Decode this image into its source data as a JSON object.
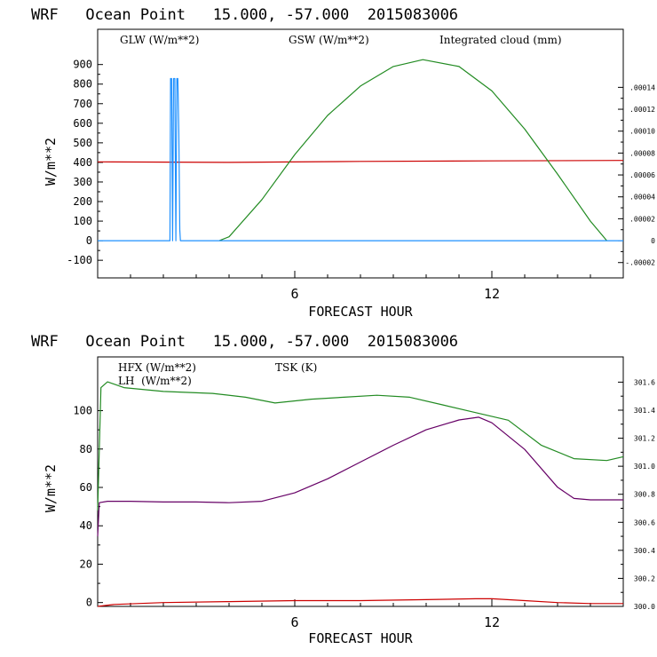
{
  "chart_data": [
    {
      "type": "line",
      "title": "WRF   Ocean Point   15.000, -57.000  2015083006",
      "xlabel": "FORECAST HOUR",
      "ylabel": "W/m**2",
      "xlim": [
        0,
        16
      ],
      "ylim": [
        -190,
        1080
      ],
      "x_ticks": [
        6,
        12
      ],
      "x_tick_labels": [
        "6",
        "12"
      ],
      "y_ticks": [
        -100,
        0,
        100,
        200,
        300,
        400,
        500,
        600,
        700,
        800,
        900
      ],
      "y_tick_labels": [
        "-100",
        "0",
        "100",
        "200",
        "300",
        "400",
        "500",
        "600",
        "700",
        "800",
        "900"
      ],
      "right_axis": {
        "ylim": [
          -3.4e-05,
          0.000193
        ],
        "ticks": [
          -2e-05,
          0,
          2e-05,
          4e-05,
          6e-05,
          8e-05,
          0.0001,
          0.00012,
          0.00014
        ],
        "tick_labels": [
          "-.00002",
          "0",
          ".00002",
          ".00004",
          ".00006",
          ".00008",
          ".00010",
          ".00012",
          ".00014"
        ]
      },
      "legend": [
        "GLW (W/m**2)",
        "GSW (W/m**2)",
        "Integrated cloud (mm)"
      ],
      "series": [
        {
          "name": "GLW (W/m**2)",
          "color": "#cc0000",
          "x": [
            0,
            4,
            8,
            12,
            16
          ],
          "y": [
            403,
            400,
            405,
            408,
            410
          ]
        },
        {
          "name": "GSW (W/m**2)",
          "color": "#228b22",
          "x": [
            3.7,
            4.0,
            5.0,
            6.0,
            7.0,
            8.0,
            9.0,
            9.9,
            11.0,
            12.0,
            13.0,
            14.0,
            15.0,
            15.5
          ],
          "y": [
            0,
            20,
            210,
            440,
            640,
            790,
            890,
            925,
            890,
            765,
            570,
            340,
            100,
            0
          ]
        },
        {
          "name": "Integrated cloud (mm)",
          "color": "#1e90ff",
          "axis": "right",
          "x": [
            0,
            2.2,
            2.22,
            2.25,
            2.28,
            2.31,
            2.35,
            2.38,
            2.41,
            2.44,
            2.47,
            2.5,
            2.52,
            2.55,
            16
          ],
          "y": [
            0,
            0,
            0.000148,
            0.000148,
            0,
            0.000148,
            0.000148,
            0,
            0.000148,
            0.000148,
            0.0001,
            1e-05,
            0,
            0,
            0
          ]
        }
      ]
    },
    {
      "type": "line",
      "title": "WRF   Ocean Point   15.000, -57.000  2015083006",
      "xlabel": "FORECAST HOUR",
      "ylabel": "W/m**2",
      "xlim": [
        0,
        16
      ],
      "ylim": [
        -2,
        128
      ],
      "x_ticks": [
        6,
        12
      ],
      "x_tick_labels": [
        "6",
        "12"
      ],
      "y_ticks": [
        0,
        20,
        40,
        60,
        80,
        100
      ],
      "y_tick_labels": [
        "0",
        "20",
        "40",
        "60",
        "80",
        "100"
      ],
      "right_axis": {
        "ylim": [
          300.0,
          301.78
        ],
        "ticks": [
          300.0,
          300.2,
          300.4,
          300.6,
          300.8,
          301.0,
          301.2,
          301.4,
          301.6
        ],
        "tick_labels": [
          "300.0",
          "300.2",
          "300.4",
          "300.6",
          "300.8",
          "301.0",
          "301.2",
          "301.4",
          "301.6"
        ]
      },
      "legend": [
        "HFX (W/m**2)",
        "LH  (W/m**2)",
        "TSK (K)"
      ],
      "series": [
        {
          "name": "HFX (W/m**2)",
          "color": "#cc0000",
          "x": [
            0,
            0.5,
            2,
            4,
            6,
            8,
            10,
            11.5,
            12,
            13,
            14,
            15,
            16
          ],
          "y": [
            -2,
            -1,
            0,
            0.5,
            1,
            1,
            1.5,
            2,
            2,
            1,
            0,
            -0.5,
            -0.5
          ]
        },
        {
          "name": "LH  (W/m**2)",
          "color": "#228b22",
          "x": [
            0,
            0.1,
            0.3,
            0.8,
            2,
            3.5,
            4.5,
            5.4,
            6.5,
            7.5,
            8.5,
            9.5,
            10.5,
            11.5,
            12.5,
            13.5,
            14.5,
            15.5,
            16
          ],
          "y": [
            48,
            112,
            115,
            112,
            110,
            109,
            107,
            104,
            106,
            107,
            108,
            107,
            103,
            99,
            95,
            82,
            75,
            74,
            76
          ]
        },
        {
          "name": "TSK (K)",
          "color": "#660066",
          "axis": "right",
          "x": [
            0,
            0.05,
            0.3,
            1,
            2,
            3,
            4,
            5,
            6,
            7,
            8,
            9,
            10,
            11,
            11.6,
            12,
            13,
            14,
            14.5,
            15,
            16
          ],
          "y": [
            300.5,
            300.74,
            300.75,
            300.75,
            300.745,
            300.745,
            300.74,
            300.75,
            300.81,
            300.91,
            301.03,
            301.15,
            301.26,
            301.33,
            301.35,
            301.31,
            301.12,
            300.85,
            300.77,
            300.76,
            300.76
          ]
        }
      ]
    }
  ]
}
